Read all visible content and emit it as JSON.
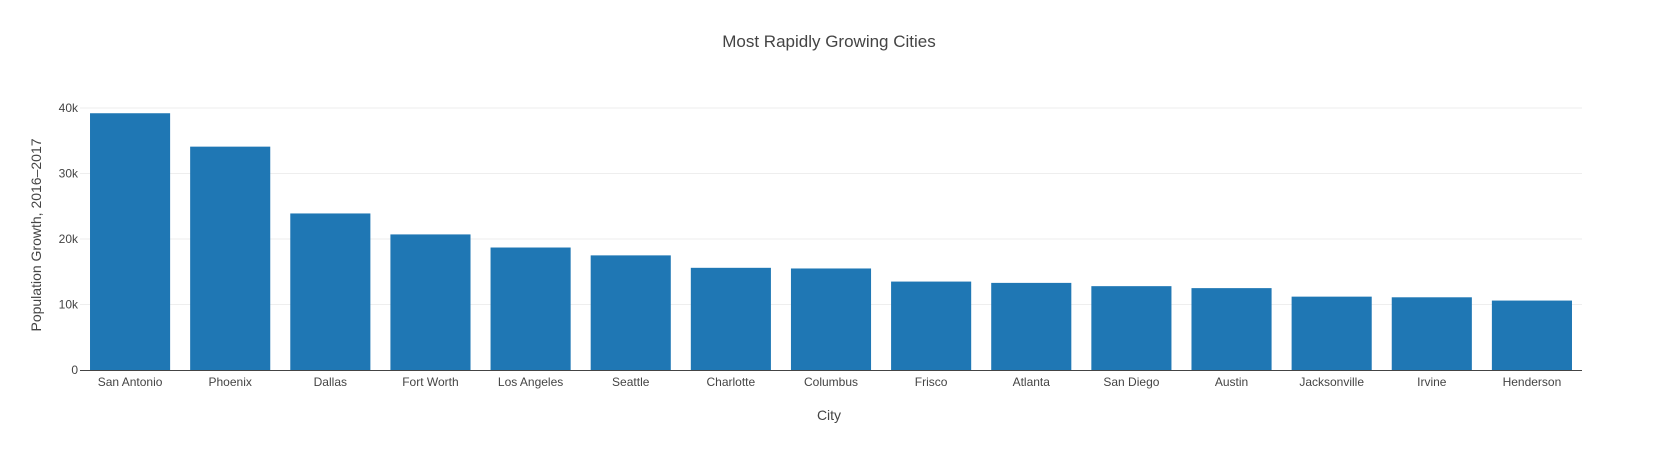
{
  "chart_data": {
    "type": "bar",
    "title": "Most Rapidly Growing Cities",
    "xlabel": "City",
    "ylabel": "Population Growth, 2016–2017",
    "categories": [
      "San Antonio",
      "Phoenix",
      "Dallas",
      "Fort Worth",
      "Los Angeles",
      "Seattle",
      "Charlotte",
      "Columbus",
      "Frisco",
      "Atlanta",
      "San Diego",
      "Austin",
      "Jacksonville",
      "Irvine",
      "Henderson"
    ],
    "values": [
      39200,
      34100,
      23900,
      20700,
      18700,
      17500,
      15600,
      15500,
      13500,
      13300,
      12800,
      12500,
      11200,
      11100,
      10600
    ],
    "ylim": [
      0,
      40000
    ],
    "yticks": [
      0,
      10000,
      20000,
      30000,
      40000
    ],
    "ytick_labels": [
      "0",
      "10k",
      "20k",
      "30k",
      "40k"
    ],
    "grid": true,
    "bar_color": "#1f77b4"
  }
}
